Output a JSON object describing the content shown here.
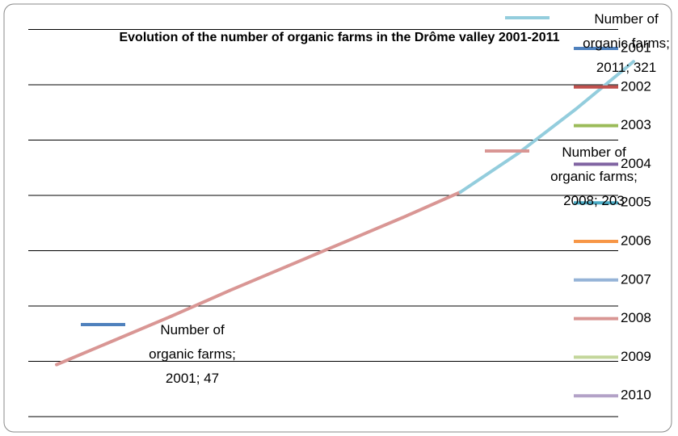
{
  "chart_data": {
    "type": "line",
    "title": "Evolution of the number of organic farms in the Drôme valley 2001-2011",
    "categories": [
      "2001",
      "2002",
      "2003",
      "2004",
      "2005",
      "2006",
      "2007",
      "2008",
      "2009",
      "2010",
      "2011"
    ],
    "series": [
      {
        "name": "Number of organic farms",
        "values": [
          47,
          69,
          91,
          114,
          136,
          158,
          180,
          203,
          238,
          278,
          321
        ],
        "value_labels": [
          "Number of organic farms; 2001; 47",
          null,
          null,
          null,
          null,
          null,
          null,
          "Number of organic farms; 2008; 203",
          null,
          null,
          "Number of organic farms; 2011; 321"
        ],
        "point_colors": [
          "#4f81bd",
          "#c0504d",
          "#9bbb59",
          "#8064a2",
          "#4bacc6",
          "#f79646",
          "#95b3d7",
          "#d99694",
          "#c3d69b",
          "#b3a2c7",
          "#93cddd"
        ],
        "segment_colors": [
          "#d99694",
          "#d99694",
          "#d99694",
          "#d99694",
          "#d99694",
          "#d99694",
          "#d99694",
          "#93cddd",
          "#93cddd",
          "#93cddd"
        ]
      }
    ],
    "legend_categories": 10,
    "ylim": [
      0,
      350
    ],
    "yticks": [
      0,
      50,
      100,
      150,
      200,
      250,
      300,
      350
    ],
    "grid": true
  }
}
